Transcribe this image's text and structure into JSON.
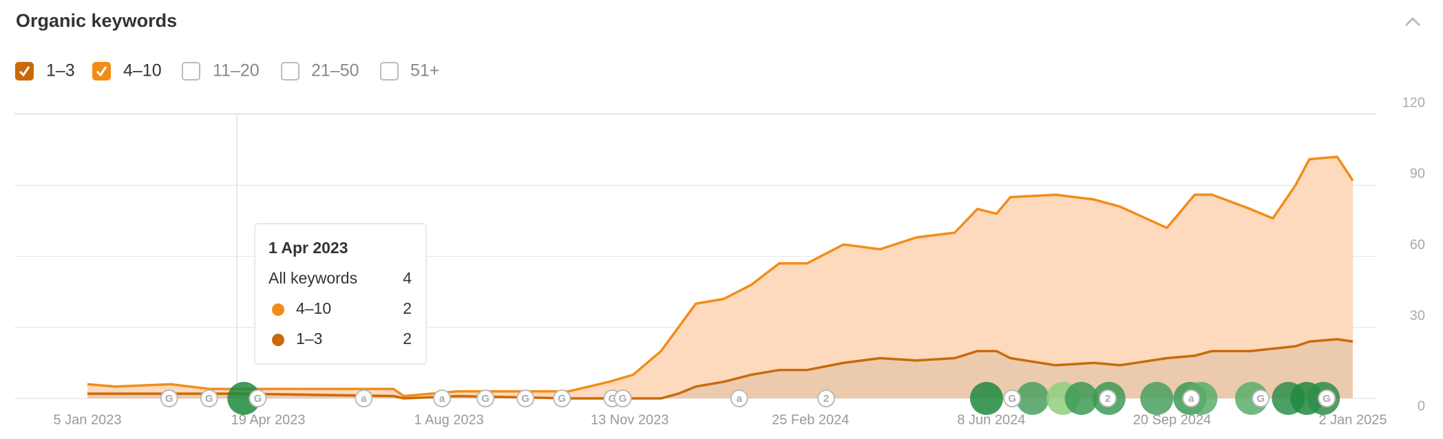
{
  "chart_data": {
    "type": "stacked-area",
    "title": "Organic keywords",
    "filters": [
      {
        "label": "1–3",
        "checked": true,
        "color": "#c96a0a"
      },
      {
        "label": "4–10",
        "checked": true,
        "color": "#f28c18"
      },
      {
        "label": "11–20",
        "checked": false
      },
      {
        "label": "21–50",
        "checked": false
      },
      {
        "label": "51+",
        "checked": false
      }
    ],
    "x": [
      "5 Jan 2023",
      "21 Jan 2023",
      "22 Feb 2023",
      "16 Mar 2023",
      "1 Apr 2023",
      "30 Jun 2023",
      "6 Jul 2023",
      "6 Aug 2023",
      "9 Oct 2023",
      "1 Nov 2023",
      "15 Nov 2023",
      "1 Dec 2023",
      "11 Dec 2023",
      "21 Dec 2023",
      "6 Jan 2024",
      "22 Jan 2024",
      "7 Feb 2024",
      "23 Feb 2024",
      "15 Mar 2024",
      "5 Apr 2024",
      "26 Apr 2024",
      "18 May 2024",
      "31 May 2024",
      "11 Jun 2024",
      "19 Jun 2024",
      "15 Jul 2024",
      "6 Aug 2024",
      "21 Aug 2024",
      "17 Sep 2024",
      "3 Oct 2024",
      "13 Oct 2024",
      "4 Nov 2024",
      "17 Nov 2024",
      "30 Nov 2024",
      "8 Dec 2024",
      "24 Dec 2024",
      "2 Jan 2025"
    ],
    "series": [
      {
        "name": "1–3",
        "color": "#c96a0a",
        "fill": "#eccaae",
        "values": [
          2,
          2,
          2,
          2,
          2,
          1,
          0,
          1,
          0,
          0,
          0,
          0,
          2,
          5,
          7,
          10,
          12,
          12,
          15,
          17,
          16,
          17,
          20,
          20,
          17,
          14,
          15,
          14,
          17,
          18,
          20,
          20,
          21,
          22,
          24,
          25,
          24
        ]
      },
      {
        "name": "4–10",
        "color": "#f28c18",
        "fill": "#fdd9bd",
        "values": [
          4,
          3,
          4,
          2,
          2,
          3,
          1,
          2,
          3,
          7,
          10,
          20,
          28,
          35,
          35,
          38,
          45,
          45,
          50,
          46,
          52,
          53,
          60,
          58,
          68,
          72,
          69,
          67,
          55,
          68,
          66,
          60,
          55,
          68,
          77,
          77,
          68
        ]
      }
    ],
    "xlim": [
      "5 Jan 2023",
      "2 Jan 2025"
    ],
    "xticks": [
      "5 Jan 2023",
      "19 Apr 2023",
      "1 Aug 2023",
      "13 Nov 2023",
      "25 Feb 2024",
      "8 Jun 2024",
      "20 Sep 2024",
      "2 Jan 2025"
    ],
    "ylim": [
      0,
      120
    ],
    "yticks": [
      0,
      30,
      60,
      90,
      120
    ],
    "grid": true,
    "markers": [
      {
        "date": "21 Feb 2023",
        "label": "G"
      },
      {
        "date": "16 Mar 2023",
        "label": "G"
      },
      {
        "date": "13 Apr 2023",
        "label": "G"
      },
      {
        "date": "13 Jun 2023",
        "label": "a"
      },
      {
        "date": "28 Jul 2023",
        "label": "a"
      },
      {
        "date": "22 Aug 2023",
        "label": "G"
      },
      {
        "date": "14 Sep 2023",
        "label": "G"
      },
      {
        "date": "5 Oct 2023",
        "label": "G"
      },
      {
        "date": "3 Nov 2023",
        "label": "G"
      },
      {
        "date": "9 Nov 2023",
        "label": "G"
      },
      {
        "date": "15 Jan 2024",
        "label": "a"
      },
      {
        "date": "5 Mar 2024",
        "label": "2"
      },
      {
        "date": "20 Jun 2024",
        "label": "G"
      },
      {
        "date": "14 Aug 2024",
        "label": "2"
      },
      {
        "date": "1 Oct 2024",
        "label": "a"
      },
      {
        "date": "10 Nov 2024",
        "label": "G"
      },
      {
        "date": "18 Dec 2024",
        "label": "G"
      }
    ],
    "tooltip": {
      "date": "1 Apr 2023",
      "total_label": "All keywords",
      "total": 4,
      "values": [
        2,
        2
      ]
    }
  }
}
